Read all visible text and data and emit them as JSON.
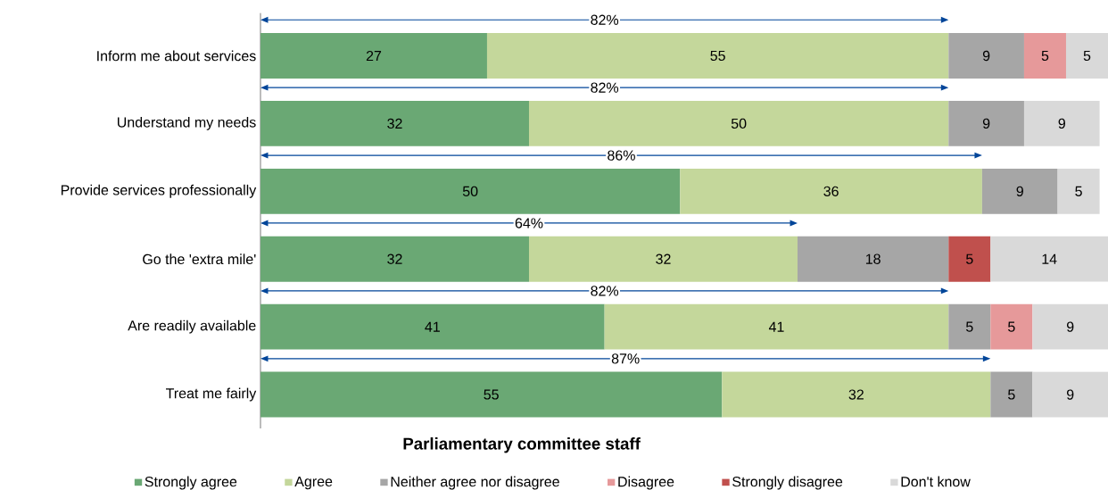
{
  "chart_data": {
    "type": "bar",
    "orientation": "horizontal",
    "stacked": true,
    "title": "Parliamentary committee staff",
    "categories": [
      "Inform me about services",
      "Understand my needs",
      "Provide services professionally",
      "Go the 'extra mile'",
      "Are readily available",
      "Treat me fairly"
    ],
    "series": [
      {
        "name": "Strongly agree",
        "color": "#6aa874",
        "values": [
          27,
          32,
          50,
          32,
          41,
          55
        ]
      },
      {
        "name": "Agree",
        "color": "#c4d79b",
        "values": [
          55,
          50,
          36,
          32,
          41,
          32
        ]
      },
      {
        "name": "Neither agree nor disagree",
        "color": "#a6a6a6",
        "values": [
          9,
          9,
          9,
          18,
          5,
          5
        ]
      },
      {
        "name": "Disagree",
        "color": "#e6999a",
        "values": [
          5,
          null,
          null,
          null,
          5,
          null
        ]
      },
      {
        "name": "Strongly disagree",
        "color": "#c0504d",
        "values": [
          null,
          null,
          null,
          5,
          null,
          null
        ]
      },
      {
        "name": "Don't know",
        "color": "#d9d9d9",
        "values": [
          5,
          9,
          5,
          14,
          9,
          9
        ]
      }
    ],
    "data_labels": true,
    "legend": "bottom",
    "annotations": [
      "82%",
      "82%",
      "86%",
      "64%",
      "82%",
      "87%"
    ]
  }
}
